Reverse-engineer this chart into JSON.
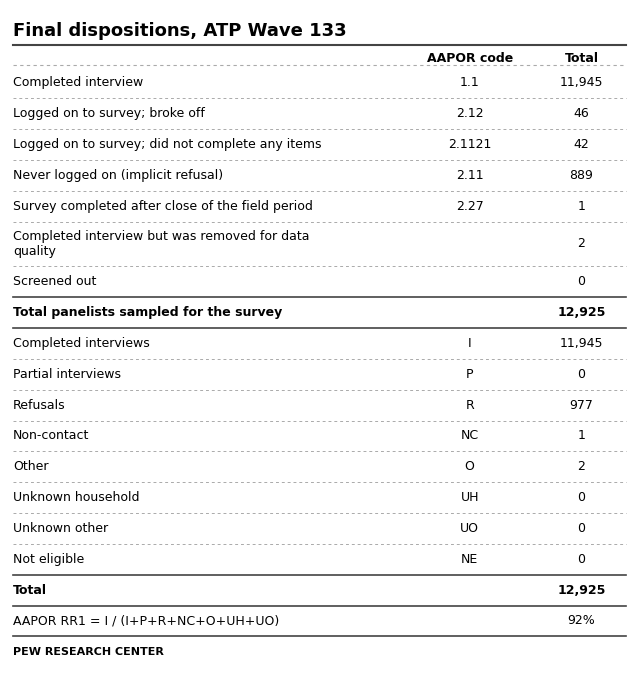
{
  "title": "Final dispositions, ATP Wave 133",
  "col_headers": [
    "",
    "AAPOR code",
    "Total"
  ],
  "rows": [
    {
      "label": "Completed interview",
      "code": "1.1",
      "total": "11,945",
      "bold": false,
      "wrap": false
    },
    {
      "label": "Logged on to survey; broke off",
      "code": "2.12",
      "total": "46",
      "bold": false,
      "wrap": false
    },
    {
      "label": "Logged on to survey; did not complete any items",
      "code": "2.1121",
      "total": "42",
      "bold": false,
      "wrap": false
    },
    {
      "label": "Never logged on (implicit refusal)",
      "code": "2.11",
      "total": "889",
      "bold": false,
      "wrap": false
    },
    {
      "label": "Survey completed after close of the field period",
      "code": "2.27",
      "total": "1",
      "bold": false,
      "wrap": false
    },
    {
      "label": "Completed interview but was removed for data\nquality",
      "code": "",
      "total": "2",
      "bold": false,
      "wrap": true
    },
    {
      "label": "Screened out",
      "code": "",
      "total": "0",
      "bold": false,
      "wrap": false
    },
    {
      "label": "Total panelists sampled for the survey",
      "code": "",
      "total": "12,925",
      "bold": true,
      "separator_above": true,
      "separator_below": true
    },
    {
      "label": "Completed interviews",
      "code": "I",
      "total": "11,945",
      "bold": false,
      "wrap": false
    },
    {
      "label": "Partial interviews",
      "code": "P",
      "total": "0",
      "bold": false,
      "wrap": false
    },
    {
      "label": "Refusals",
      "code": "R",
      "total": "977",
      "bold": false,
      "wrap": false
    },
    {
      "label": "Non-contact",
      "code": "NC",
      "total": "1",
      "bold": false,
      "wrap": false
    },
    {
      "label": "Other",
      "code": "O",
      "total": "2",
      "bold": false,
      "wrap": false
    },
    {
      "label": "Unknown household",
      "code": "UH",
      "total": "0",
      "bold": false,
      "wrap": false
    },
    {
      "label": "Unknown other",
      "code": "UO",
      "total": "0",
      "bold": false,
      "wrap": false
    },
    {
      "label": "Not eligible",
      "code": "NE",
      "total": "0",
      "bold": false,
      "wrap": false
    },
    {
      "label": "Total",
      "code": "",
      "total": "12,925",
      "bold": true,
      "separator_above": true,
      "separator_below": true
    },
    {
      "label": "AAPOR RR1 = I / (I+P+R+NC+O+UH+UO)",
      "code": "",
      "total": "92%",
      "bold": false,
      "separator_above": false,
      "separator_below": true
    }
  ],
  "footer": "PEW RESEARCH CENTER",
  "bg_color": "#ffffff",
  "text_color": "#000000",
  "title_color": "#000000",
  "footer_color": "#000000"
}
